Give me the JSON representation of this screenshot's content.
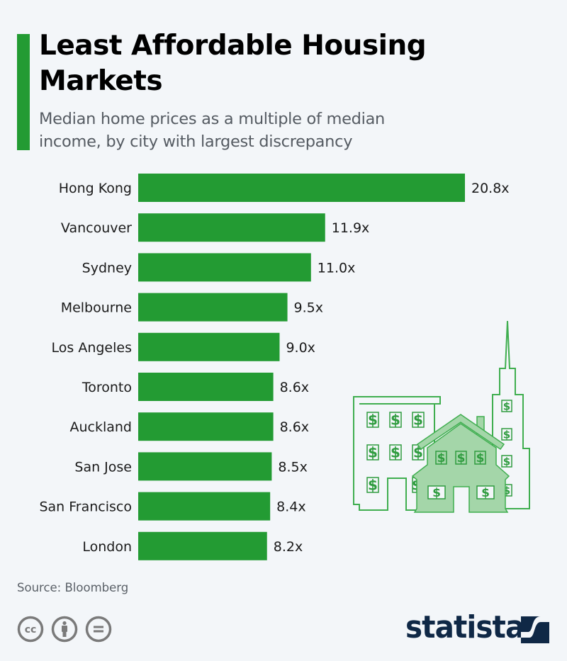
{
  "header": {
    "title": "Least Affordable Housing Markets",
    "subtitle": "Median home prices as a multiple of median income, by city with largest discrepancy"
  },
  "colors": {
    "accent": "#239b33",
    "bar": "#239b33",
    "illustration_line": "#3fae4f",
    "illustration_fill": "#a4d6a9",
    "brand": "#0f2846",
    "background": "#f3f6f9"
  },
  "chart_data": {
    "type": "bar",
    "orientation": "horizontal",
    "title": "Least Affordable Housing Markets",
    "subtitle": "Median home prices as a multiple of median income, by city with largest discrepancy",
    "xlabel": "",
    "ylabel": "",
    "categories": [
      "Hong Kong",
      "Vancouver",
      "Sydney",
      "Melbourne",
      "Los Angeles",
      "Toronto",
      "Auckland",
      "San Jose",
      "San Francisco",
      "London"
    ],
    "values": [
      20.8,
      11.9,
      11.0,
      9.5,
      9.0,
      8.6,
      8.6,
      8.5,
      8.4,
      8.2
    ],
    "value_labels": [
      "20.8x",
      "11.9x",
      "11.0x",
      "9.5x",
      "9.0x",
      "8.6x",
      "8.6x",
      "8.5x",
      "8.4x",
      "8.2x"
    ],
    "value_suffix": "x",
    "xlim": [
      0,
      20.8
    ],
    "grid": false,
    "legend": "none"
  },
  "illustration": {
    "description": "city buildings and house with dollar-sign windows",
    "window_glyph": "$"
  },
  "footer": {
    "source": "Source: Bloomberg",
    "license_icons": [
      "cc-icon",
      "attribution-icon",
      "no-derivatives-icon"
    ],
    "brand": "statista"
  }
}
